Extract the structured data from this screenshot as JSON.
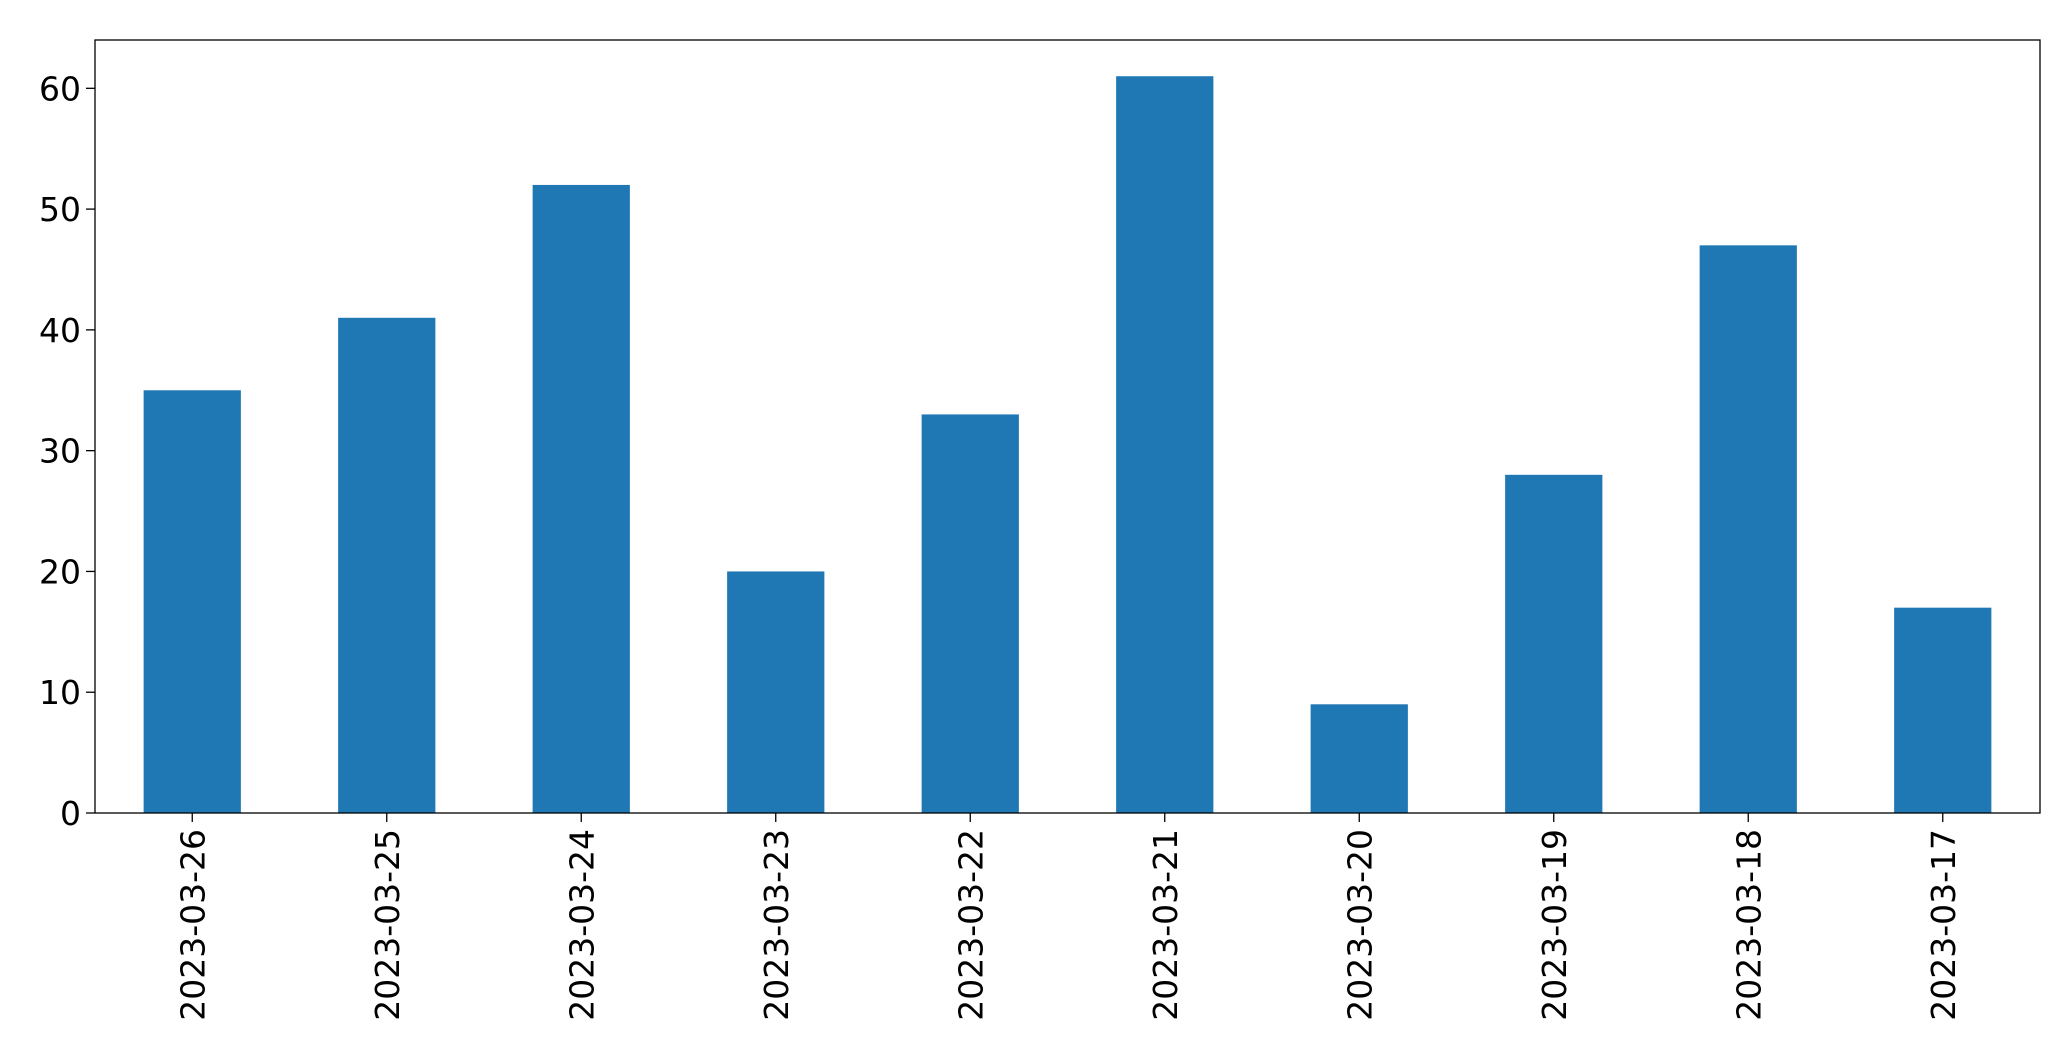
{
  "chart_data": {
    "type": "bar",
    "categories": [
      "2023-03-26",
      "2023-03-25",
      "2023-03-24",
      "2023-03-23",
      "2023-03-22",
      "2023-03-21",
      "2023-03-20",
      "2023-03-19",
      "2023-03-18",
      "2023-03-17"
    ],
    "values": [
      35,
      41,
      52,
      20,
      33,
      61,
      9,
      28,
      47,
      17
    ],
    "title": "",
    "xlabel": "",
    "ylabel": "",
    "ylim": [
      0,
      64
    ],
    "yticks": [
      0,
      10,
      20,
      30,
      40,
      50,
      60
    ],
    "bar_color": "#1f77b4",
    "grid": false,
    "legend": false
  }
}
